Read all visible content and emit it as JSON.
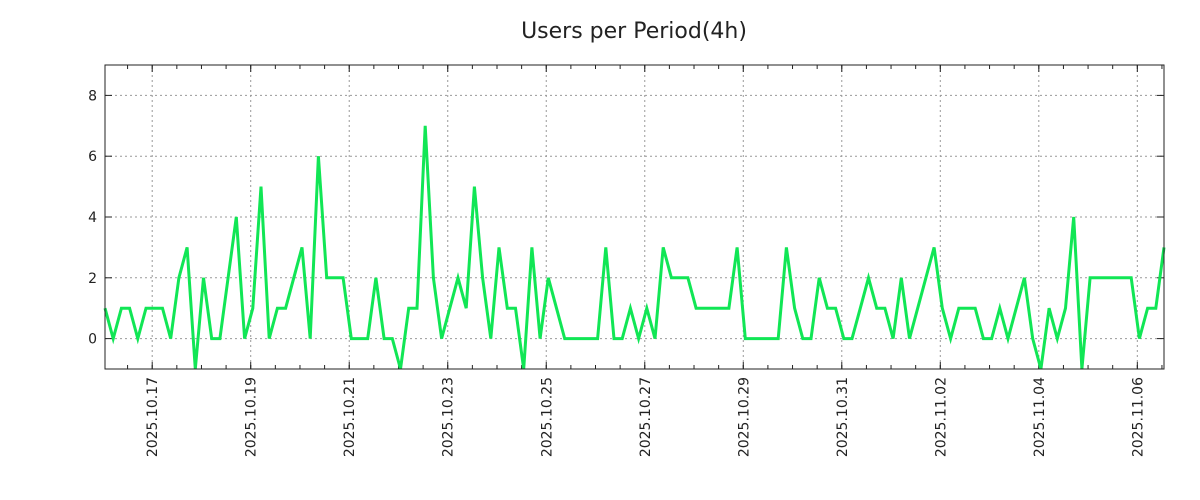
{
  "chart_data": {
    "type": "line",
    "title": "Users per Period(4h)",
    "xlabel": "",
    "ylabel": "",
    "series": [
      {
        "name": "Users",
        "color": "#11e655",
        "start": "2025-10-16T01:00",
        "step_hours": 4,
        "values": [
          1,
          0,
          1,
          1,
          0,
          1,
          1,
          1,
          0,
          2,
          3,
          -1,
          2,
          0,
          0,
          2,
          4,
          0,
          1,
          5,
          0,
          1,
          1,
          2,
          3,
          0,
          6,
          2,
          2,
          2,
          0,
          0,
          0,
          2,
          0,
          0,
          -1,
          1,
          1,
          7,
          2,
          0,
          1,
          2,
          1,
          5,
          2,
          0,
          3,
          1,
          1,
          -1,
          3,
          0,
          2,
          1,
          0,
          0,
          0,
          0,
          0,
          3,
          0,
          0,
          1,
          0,
          1,
          0,
          3,
          2,
          2,
          2,
          1,
          1,
          1,
          1,
          1,
          3,
          0,
          0,
          0,
          0,
          0,
          3,
          1,
          0,
          0,
          2,
          1,
          1,
          0,
          0,
          1,
          2,
          1,
          1,
          0,
          2,
          0,
          1,
          2,
          3,
          1,
          0,
          1,
          1,
          1,
          0,
          0,
          1,
          0,
          1,
          2,
          0,
          -1,
          1,
          0,
          1,
          4,
          -1,
          2,
          2,
          2,
          2,
          2,
          2,
          0,
          1,
          1,
          3
        ]
      }
    ],
    "ylim": [
      -1,
      9
    ],
    "yticks": [
      0,
      2,
      4,
      6,
      8
    ],
    "xticks": [
      "2025.10.17",
      "2025.10.19",
      "2025.10.21",
      "2025.10.23",
      "2025.10.25",
      "2025.10.27",
      "2025.10.29",
      "2025.10.31",
      "2025.11.02",
      "2025.11.04",
      "2025.11.06"
    ],
    "xtick_dates": [
      "2025-10-17",
      "2025-10-19",
      "2025-10-21",
      "2025-10-23",
      "2025-10-25",
      "2025-10-27",
      "2025-10-29",
      "2025-10-31",
      "2025-11-02",
      "2025-11-04",
      "2025-11-06"
    ],
    "minor_tick_hours": 12,
    "grid": true,
    "legend": "none"
  }
}
